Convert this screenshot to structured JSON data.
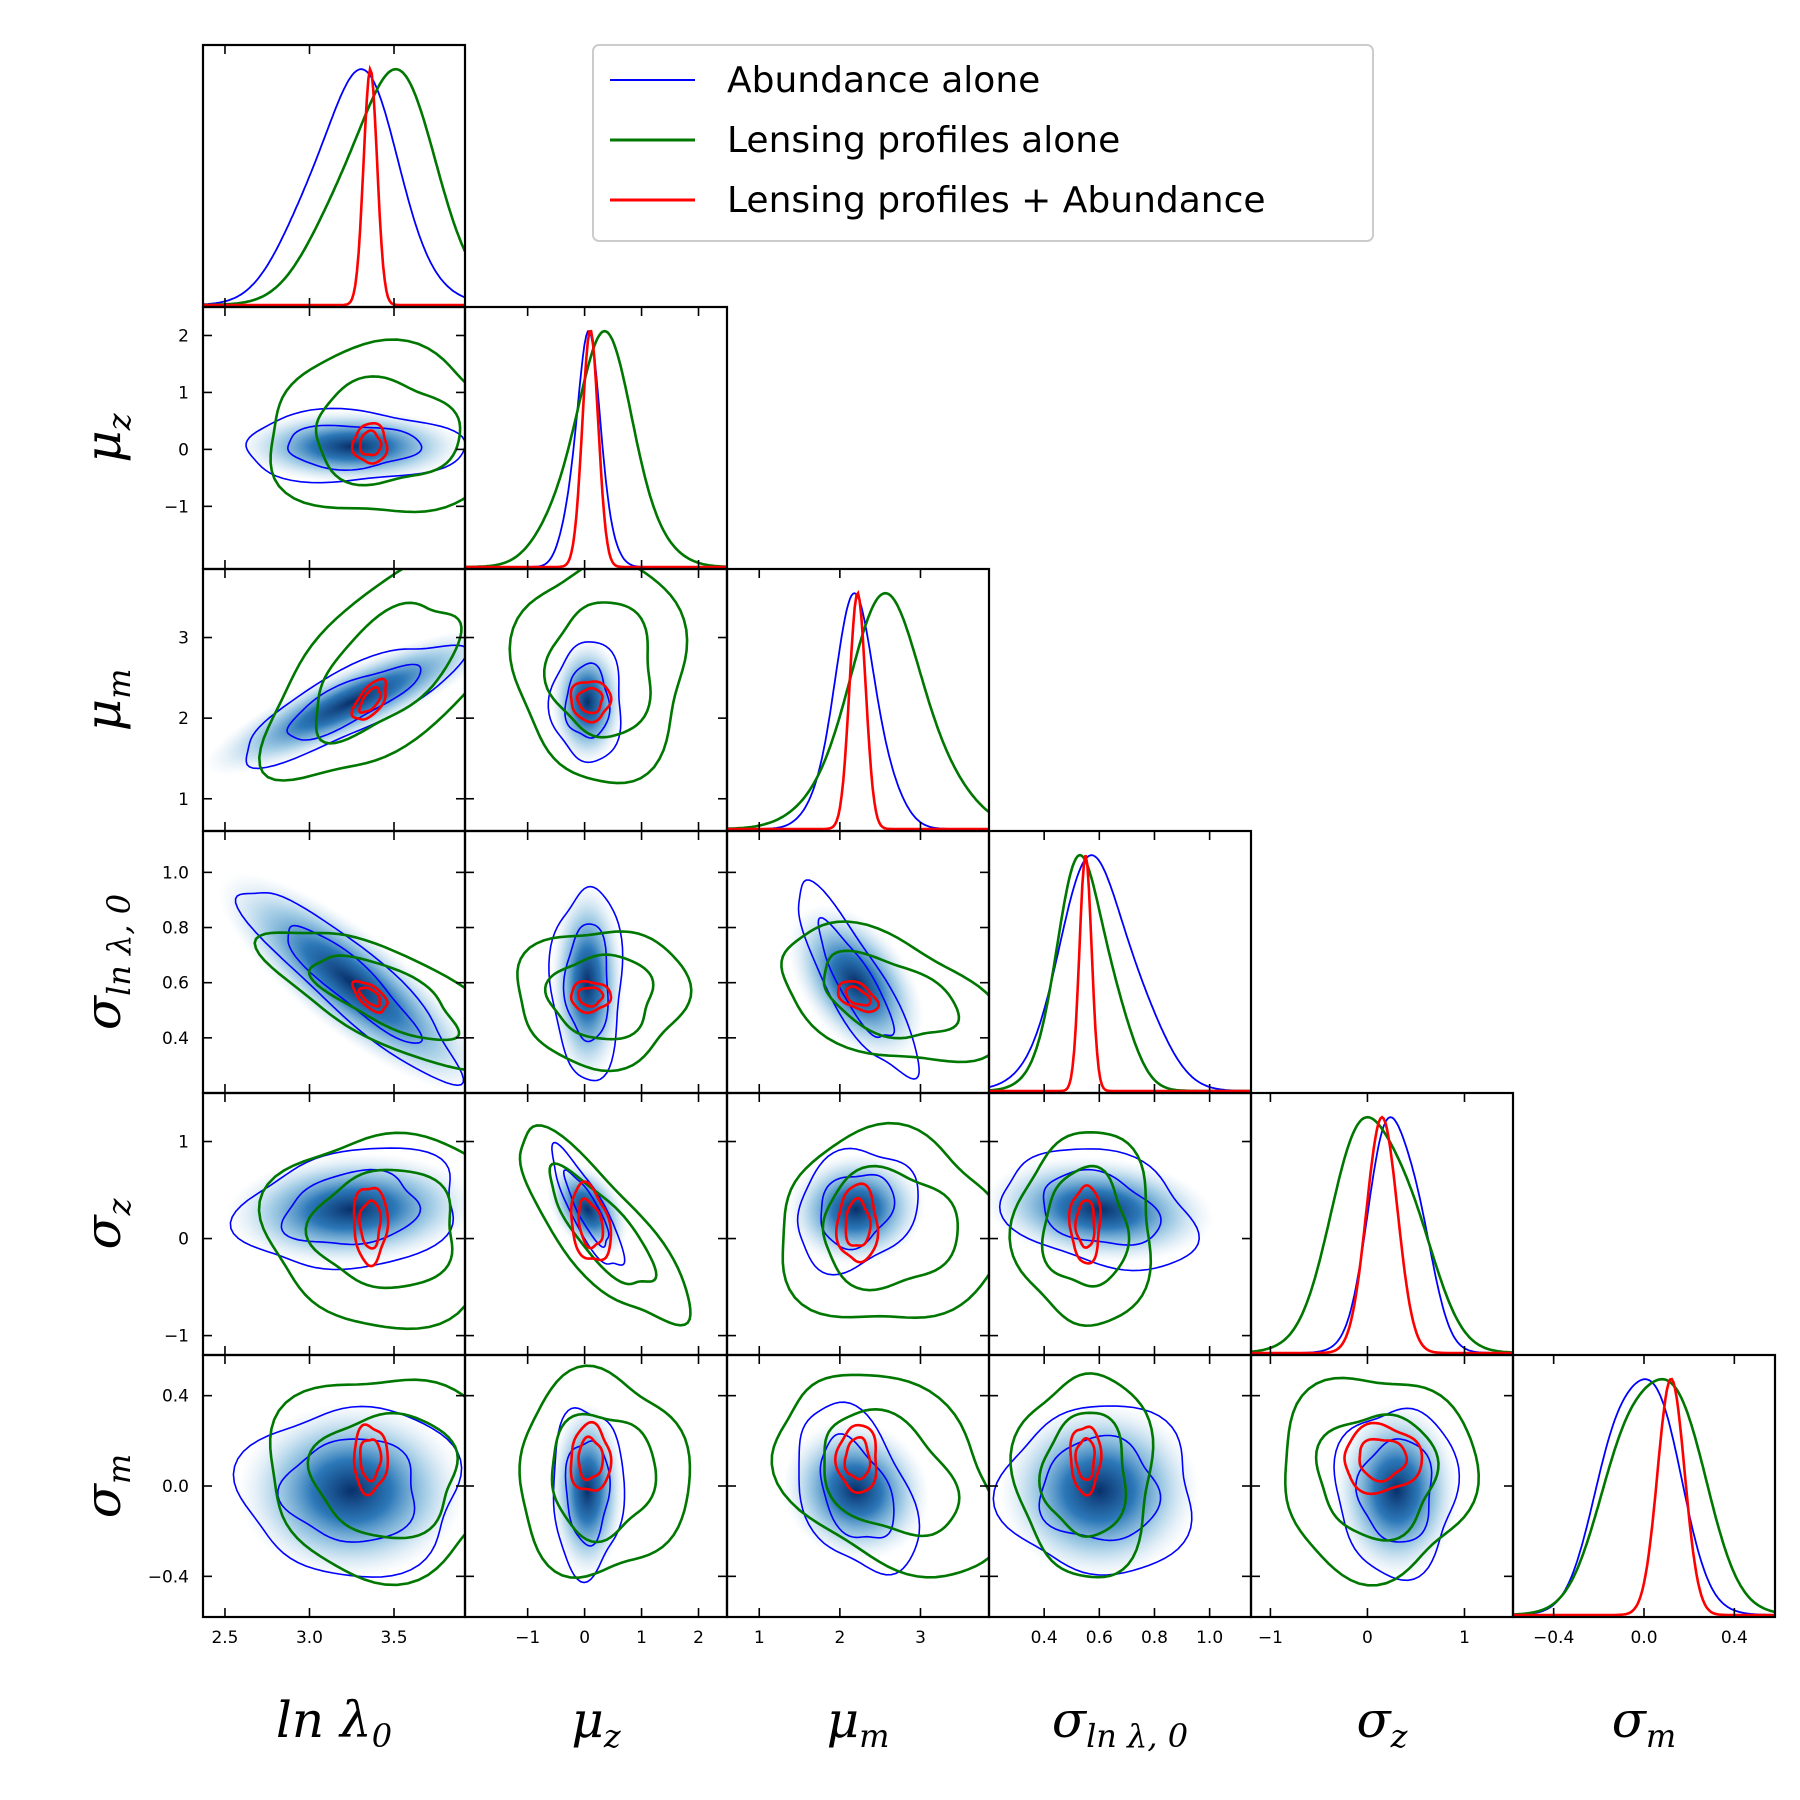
{
  "chart_data": {
    "type": "corner",
    "title": "",
    "legend": {
      "placement": "top-right",
      "entries": [
        {
          "label": "Abundance alone",
          "color": "#0000ff"
        },
        {
          "label": "Lensing profiles alone",
          "color": "#007700"
        },
        {
          "label": "Lensing profiles + Abundance",
          "color": "#ff0000"
        }
      ]
    },
    "parameters": [
      {
        "label": "ln λ0",
        "sym": "ln λ",
        "sub": "0",
        "range": [
          2.37,
          3.92
        ],
        "ticks": [
          "2.5",
          "3.0",
          "3.5"
        ],
        "tick_values": [
          2.5,
          3.0,
          3.5
        ]
      },
      {
        "label": "μz",
        "sym": "μ",
        "sub": "z",
        "range": [
          -2.1,
          2.5
        ],
        "ticks": [
          "−1",
          "0",
          "1",
          "2"
        ],
        "tick_values": [
          -1,
          0,
          1,
          2
        ]
      },
      {
        "label": "μm",
        "sym": "μ",
        "sub": "m",
        "range": [
          0.6,
          3.85
        ],
        "ticks": [
          "1",
          "2",
          "3"
        ],
        "tick_values": [
          1,
          2,
          3
        ]
      },
      {
        "label": "σln λ,0",
        "sym": "σ",
        "sub": "ln λ, 0",
        "range": [
          0.2,
          1.15
        ],
        "ticks": [
          "0.4",
          "0.6",
          "0.8",
          "1.0"
        ],
        "tick_values": [
          0.4,
          0.6,
          0.8,
          1.0
        ]
      },
      {
        "label": "σz",
        "sym": "σ",
        "sub": "z",
        "range": [
          -1.2,
          1.5
        ],
        "ticks": [
          "−1",
          "0",
          "1"
        ],
        "tick_values": [
          -1,
          0,
          1
        ]
      },
      {
        "label": "σm",
        "sym": "σ",
        "sub": "m",
        "range": [
          -0.58,
          0.58
        ],
        "ticks": [
          "−0.4",
          "0.0",
          "0.4"
        ],
        "tick_values": [
          -0.4,
          0.0,
          0.4
        ]
      }
    ],
    "series": [
      {
        "name": "Abundance alone",
        "color": "#0000ff",
        "mean": [
          3.25,
          0.05,
          2.2,
          0.6,
          0.3,
          -0.02
        ],
        "std": [
          0.26,
          0.25,
          0.3,
          0.14,
          0.25,
          0.15
        ]
      },
      {
        "name": "Lensing profiles alone",
        "color": "#007700",
        "mean": [
          3.45,
          0.3,
          2.6,
          0.55,
          0.1,
          0.05
        ],
        "std": [
          0.28,
          0.6,
          0.55,
          0.1,
          0.4,
          0.18
        ]
      },
      {
        "name": "Lensing profiles + Abundance",
        "color": "#ff0000",
        "mean": [
          3.36,
          0.1,
          2.22,
          0.55,
          0.15,
          0.12
        ],
        "std": [
          0.04,
          0.14,
          0.1,
          0.022,
          0.16,
          0.06
        ]
      }
    ],
    "correlations": {
      "Abundance alone": {
        "0-2": 0.82,
        "0-3": -0.9,
        "2-3": -0.85,
        "1-4": -0.85,
        "0-4": 0.2,
        "2-4": 0.2,
        "3-4": -0.3,
        "2-5": -0.4
      },
      "Lensing profiles alone": {
        "0-2": 0.6,
        "0-3": -0.7,
        "2-3": -0.45,
        "1-4": -0.8,
        "2-5": -0.35
      },
      "Lensing profiles + Abundance": {
        "0-2": 0.6,
        "0-3": -0.6,
        "2-3": -0.5,
        "1-4": -0.3
      }
    },
    "grid": false
  }
}
